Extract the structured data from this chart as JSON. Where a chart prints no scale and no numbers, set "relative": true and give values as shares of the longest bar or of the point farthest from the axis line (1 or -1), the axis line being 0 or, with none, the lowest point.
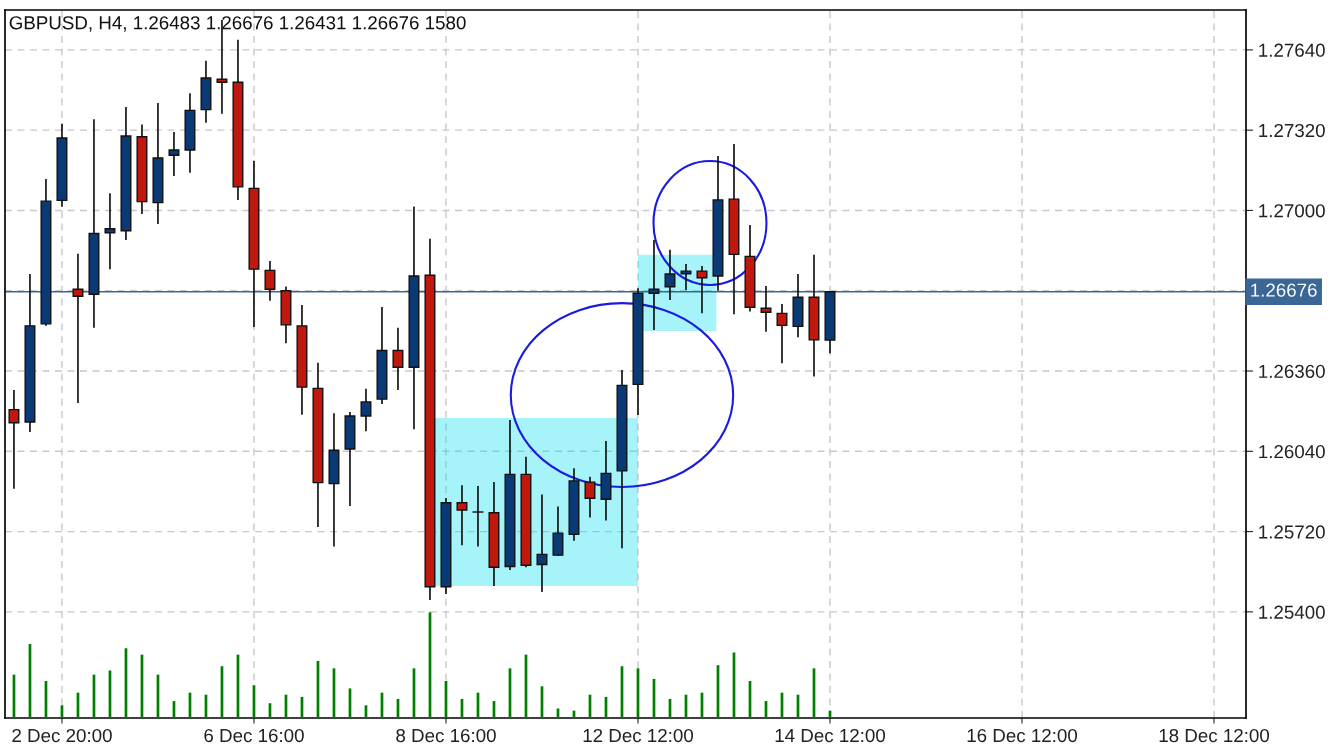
{
  "chart_data": [
    {
      "type": "candlestick",
      "title": "GBPUSD, H4, 1.26483 1.26676 1.26431 1.26676 1580",
      "categories": [
        null,
        null,
        null,
        "2 Dec 20:00",
        null,
        null,
        null,
        null,
        null,
        null,
        null,
        null,
        null,
        null,
        null,
        "6 Dec 16:00",
        null,
        null,
        null,
        null,
        null,
        null,
        null,
        null,
        null,
        null,
        null,
        "8 Dec 16:00",
        null,
        null,
        null,
        null,
        null,
        null,
        null,
        null,
        null,
        null,
        null,
        "12 Dec 12:00",
        null,
        null,
        null,
        null,
        null,
        null,
        null,
        null,
        null,
        null,
        null,
        "14 Dec 12:00",
        null,
        null,
        null,
        null,
        null,
        null,
        null,
        null,
        null,
        null,
        null,
        "16 Dec 12:00",
        null,
        null,
        null,
        null,
        null,
        null,
        null,
        null,
        null,
        null,
        null,
        "18 Dec 12:00",
        null,
        null
      ],
      "ohlc": [
        [
          1.26206,
          1.26284,
          1.25891,
          1.26154
        ],
        [
          1.26157,
          1.26747,
          1.26117,
          1.2654
        ],
        [
          1.26548,
          1.27125,
          1.2654,
          1.27037
        ],
        [
          1.2704,
          1.27346,
          1.27015,
          1.27289
        ],
        [
          1.26686,
          1.26827,
          1.26233,
          1.26658
        ],
        [
          1.26666,
          1.27364,
          1.26532,
          1.26908
        ],
        [
          1.26911,
          1.27069,
          1.26766,
          1.26927
        ],
        [
          1.26919,
          1.27412,
          1.26882,
          1.27297
        ],
        [
          1.27294,
          1.27343,
          1.26986,
          1.27035
        ],
        [
          1.27031,
          1.27428,
          1.26946,
          1.27209
        ],
        [
          1.2722,
          1.27313,
          1.27137,
          1.27241
        ],
        [
          1.27241,
          1.27467,
          1.2715,
          1.27399
        ],
        [
          1.27402,
          1.27597,
          1.2735,
          1.27528
        ],
        [
          1.27523,
          1.27759,
          1.27385,
          1.27511
        ],
        [
          1.27511,
          1.2768,
          1.27042,
          1.27094
        ],
        [
          1.27088,
          1.27198,
          1.26535,
          1.26766
        ],
        [
          1.26761,
          1.26799,
          1.2664,
          1.26686
        ],
        [
          1.2668,
          1.26697,
          1.26471,
          1.26544
        ],
        [
          1.2654,
          1.26623,
          1.26186,
          1.26296
        ],
        [
          1.26291,
          1.26393,
          1.25738,
          1.25915
        ],
        [
          1.25911,
          1.26192,
          1.25661,
          1.26044
        ],
        [
          1.26049,
          1.26197,
          1.25822,
          1.26181
        ],
        [
          1.26181,
          1.26289,
          1.2612,
          1.26237
        ],
        [
          1.26248,
          1.26615,
          1.26229,
          1.26442
        ],
        [
          1.26442,
          1.26532,
          1.26284,
          1.26375
        ],
        [
          1.26375,
          1.27016,
          1.26128,
          1.26739
        ],
        [
          1.26742,
          1.26887,
          1.25447,
          1.255
        ],
        [
          1.255,
          1.25854,
          1.25471,
          1.25835
        ],
        [
          1.25835,
          1.25905,
          1.25666,
          1.25806
        ],
        [
          1.25798,
          1.25902,
          1.25661,
          1.25798
        ],
        [
          1.25795,
          1.25918,
          1.25503,
          1.25578
        ],
        [
          1.25581,
          1.26165,
          1.25567,
          1.25948
        ],
        [
          1.25948,
          1.26018,
          1.25578,
          1.25586
        ],
        [
          1.25589,
          1.25868,
          1.25479,
          1.25629
        ],
        [
          1.25626,
          1.2582,
          1.25623,
          1.25714
        ],
        [
          1.25709,
          1.25972,
          1.25683,
          1.25922
        ],
        [
          1.25917,
          1.25939,
          1.25776,
          1.25853
        ],
        [
          1.25849,
          1.26081,
          1.25764,
          1.25952
        ],
        [
          1.25962,
          1.26364,
          1.25654,
          1.26303
        ],
        [
          1.26307,
          1.2669,
          1.26185,
          1.2667
        ],
        [
          1.2667,
          1.26882,
          1.26524,
          1.26686
        ],
        [
          1.26696,
          1.26843,
          1.26643,
          1.26747
        ],
        [
          1.26748,
          1.26787,
          1.26683,
          1.26758
        ],
        [
          1.26758,
          1.26779,
          1.2659,
          1.26732
        ],
        [
          1.26739,
          1.27217,
          1.2668,
          1.27042
        ],
        [
          1.27045,
          1.27265,
          1.26586,
          1.26825
        ],
        [
          1.26817,
          1.26942,
          1.26597,
          1.26614
        ],
        [
          1.2661,
          1.26699,
          1.26517,
          1.26594
        ],
        [
          1.2659,
          1.26627,
          1.26391,
          1.26542
        ],
        [
          1.26538,
          1.26747,
          1.26495,
          1.26654
        ],
        [
          1.26654,
          1.26823,
          1.26338,
          1.26484
        ],
        [
          1.26483,
          1.26676,
          1.26431,
          1.26676
        ],
        null,
        null,
        null,
        null,
        null,
        null,
        null,
        null,
        null,
        null,
        null,
        null,
        null,
        null,
        null,
        null,
        null,
        null,
        null,
        null,
        null,
        null,
        null,
        null,
        null,
        null
      ],
      "colors": [
        "#c0180c",
        "#0a3a75",
        "#0a3a75",
        "#0a3a75",
        "#c0180c",
        "#0a3a75",
        "#0a3a75",
        "#0a3a75",
        "#c0180c",
        "#0a3a75",
        "#0a3a75",
        "#0a3a75",
        "#0a3a75",
        "#c0180c",
        "#c0180c",
        "#c0180c",
        "#c0180c",
        "#c0180c",
        "#c0180c",
        "#c0180c",
        "#0a3a75",
        "#0a3a75",
        "#0a3a75",
        "#0a3a75",
        "#c0180c",
        "#0a3a75",
        "#c0180c",
        "#0a3a75",
        "#c0180c",
        "#c0180c",
        "#c0180c",
        "#0a3a75",
        "#c0180c",
        "#0a3a75",
        "#0a3a75",
        "#0a3a75",
        "#c0180c",
        "#0a3a75",
        "#0a3a75",
        "#0a3a75",
        "#0a3a75",
        "#0a3a75",
        "#0a3a75",
        "#c0180c",
        "#0a3a75",
        "#c0180c",
        "#c0180c",
        "#c0180c",
        "#c0180c",
        "#0a3a75",
        "#c0180c",
        "#0a3a75",
        null,
        null,
        null,
        null,
        null,
        null,
        null,
        null,
        null,
        null,
        null,
        null,
        null,
        null,
        null,
        null,
        null,
        null,
        null,
        null,
        null,
        null,
        null,
        null,
        null,
        null
      ],
      "ylim": [
        1.24977,
        1.27799
      ],
      "yticks": [
        {
          "value": 1.254,
          "label": "1.25400"
        },
        {
          "value": 1.2572,
          "label": "1.25720"
        },
        {
          "value": 1.2604,
          "label": "1.26040"
        },
        {
          "value": 1.2636,
          "label": "1.26360"
        },
        {
          "value": 1.2668,
          "label": null
        },
        {
          "value": 1.27,
          "label": "1.27000"
        },
        {
          "value": 1.2732,
          "label": "1.27320"
        },
        {
          "value": 1.2764,
          "label": "1.27640"
        }
      ],
      "ref_lines": [
        {
          "axis": "y",
          "value": 1.26676,
          "label": "1.26676",
          "color": "#3a6796"
        }
      ],
      "grid": true
    },
    {
      "type": "bar",
      "relative": true,
      "categories": [
        null,
        null,
        null,
        null,
        null,
        null,
        null,
        null,
        null,
        null,
        null,
        null,
        null,
        null,
        null,
        null,
        null,
        null,
        null,
        null,
        null,
        null,
        null,
        null,
        null,
        null,
        null,
        null,
        null,
        null,
        null,
        null,
        null,
        null,
        null,
        null,
        null,
        null,
        null,
        null,
        null,
        null,
        null,
        null,
        null,
        null,
        null,
        null,
        null,
        null,
        null,
        null,
        null,
        null,
        null,
        null,
        null,
        null,
        null,
        null,
        null,
        null,
        null,
        null,
        null,
        null,
        null,
        null,
        null,
        null,
        null,
        null,
        null,
        null,
        null,
        null,
        null,
        null
      ],
      "values": [
        0.41,
        0.7,
        0.35,
        0.12,
        0.24,
        0.41,
        0.45,
        0.66,
        0.6,
        0.41,
        0.16,
        0.24,
        0.22,
        0.49,
        0.6,
        0.31,
        0.14,
        0.22,
        0.2,
        0.54,
        0.47,
        0.28,
        0.12,
        0.24,
        0.18,
        0.47,
        1,
        0.35,
        0.18,
        0.24,
        0.16,
        0.47,
        0.6,
        0.3,
        0.09,
        0.07,
        0.22,
        0.2,
        0.49,
        0.47,
        0.37,
        0.18,
        0.22,
        0.24,
        0.5,
        0.62,
        0.35,
        0.16,
        0.24,
        0.22,
        0.47,
        0.07,
        null,
        null,
        null,
        null,
        null,
        null,
        null,
        null,
        null,
        null,
        null,
        null,
        null,
        null,
        null,
        null,
        null,
        null,
        null,
        null,
        null,
        null,
        null,
        null,
        null,
        null
      ],
      "color": "#008000"
    }
  ]
}
